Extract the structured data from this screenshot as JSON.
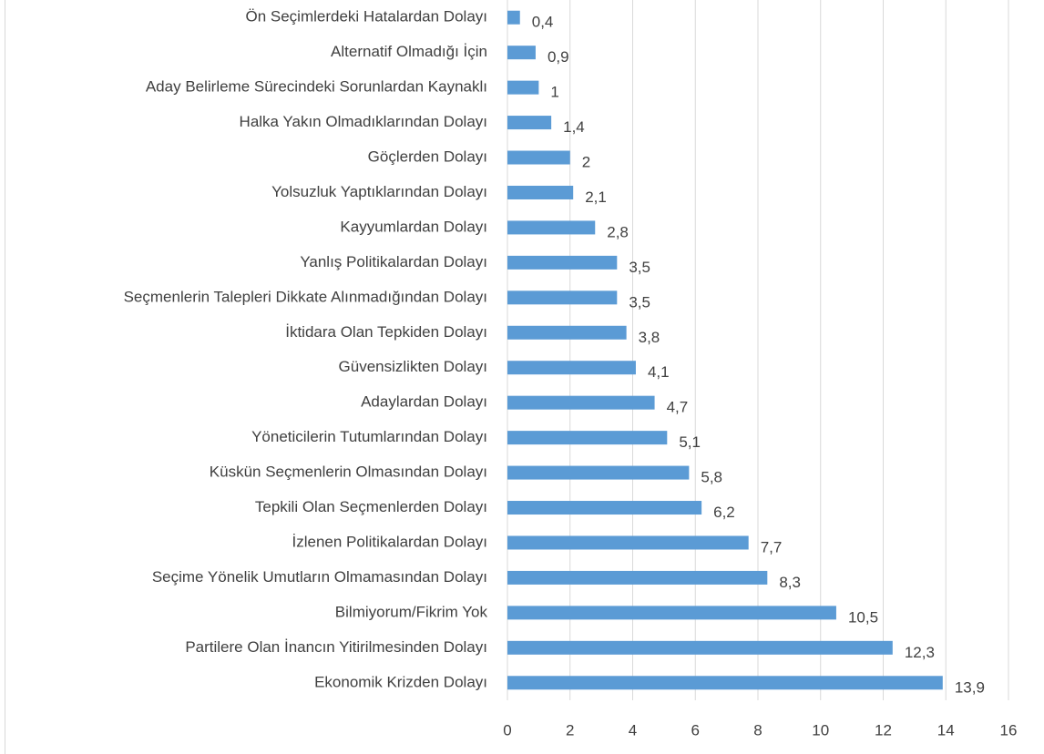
{
  "chart_data": {
    "type": "barh",
    "categories": [
      "Ön Seçimlerdeki Hatalardan Dolayı",
      "Alternatif Olmadığı İçin",
      "Aday Belirleme Sürecindeki Sorunlardan Kaynaklı",
      "Halka Yakın Olmadıklarından Dolayı",
      "Göçlerden Dolayı",
      "Yolsuzluk Yaptıklarından Dolayı",
      "Kayyumlardan Dolayı",
      "Yanlış Politikalardan Dolayı",
      "Seçmenlerin Talepleri Dikkate Alınmadığından Dolayı",
      "İktidara Olan Tepkiden Dolayı",
      "Güvensizlikten Dolayı",
      "Adaylardan Dolayı",
      "Yöneticilerin Tutumlarından Dolayı",
      "Küskün Seçmenlerin Olmasından Dolayı",
      "Tepkili Olan Seçmenlerden Dolayı",
      "İzlenen Politikalardan Dolayı",
      "Seçime Yönelik Umutların Olmamasından Dolayı",
      "Bilmiyorum/Fikrim Yok",
      "Partilere Olan İnancın Yitirilmesinden Dolayı",
      "Ekonomik Krizden Dolayı"
    ],
    "values": [
      0.4,
      0.9,
      1,
      1.4,
      2,
      2.1,
      2.8,
      3.5,
      3.5,
      3.8,
      4.1,
      4.7,
      5.1,
      5.8,
      6.2,
      7.7,
      8.3,
      10.5,
      12.3,
      13.9
    ],
    "value_labels": [
      "0,4",
      "0,9",
      "1",
      "1,4",
      "2",
      "2,1",
      "2,8",
      "3,5",
      "3,5",
      "3,8",
      "4,1",
      "4,7",
      "5,1",
      "5,8",
      "6,2",
      "7,7",
      "8,3",
      "10,5",
      "12,3",
      "13,9"
    ],
    "color": "#5b9bd5",
    "xlim": [
      0,
      16
    ],
    "xticks": [
      0,
      2,
      4,
      6,
      8,
      10,
      12,
      14,
      16
    ],
    "grid": true
  }
}
